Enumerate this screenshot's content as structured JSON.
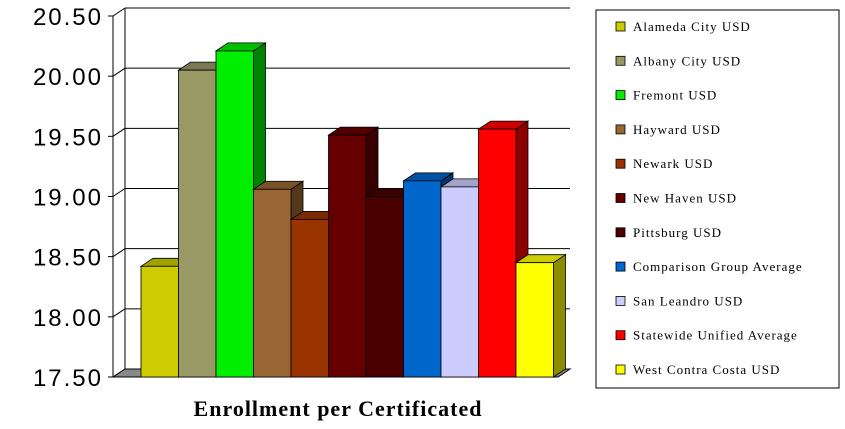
{
  "chart_data": {
    "type": "bar",
    "xlabel": "Enrollment per Certificated",
    "ylim": [
      17.5,
      20.5
    ],
    "yticks": [
      "17.50",
      "18.00",
      "18.50",
      "19.00",
      "19.50",
      "20.00",
      "20.50"
    ],
    "grid": true,
    "legend": "right",
    "series": [
      {
        "name": "Alameda City USD",
        "value": 18.42,
        "color": "#cccc00"
      },
      {
        "name": "Albany City USD",
        "value": 20.05,
        "color": "#999966"
      },
      {
        "name": "Fremont USD",
        "value": 20.21,
        "color": "#00ee00"
      },
      {
        "name": "Hayward USD",
        "value": 19.06,
        "color": "#996633"
      },
      {
        "name": "Newark USD",
        "value": 18.81,
        "color": "#993300"
      },
      {
        "name": "New Haven USD",
        "value": 19.51,
        "color": "#660000"
      },
      {
        "name": "Pittsburg USD",
        "value": 19.0,
        "color": "#4a0000"
      },
      {
        "name": "Comparison Group Average",
        "value": 19.13,
        "color": "#0066cc"
      },
      {
        "name": "San Leandro USD",
        "value": 19.08,
        "color": "#ccccff"
      },
      {
        "name": "Statewide Unified Average",
        "value": 19.56,
        "color": "#ff0000"
      },
      {
        "name": "West Contra Costa USD",
        "value": 18.45,
        "color": "#ffff00"
      }
    ]
  }
}
